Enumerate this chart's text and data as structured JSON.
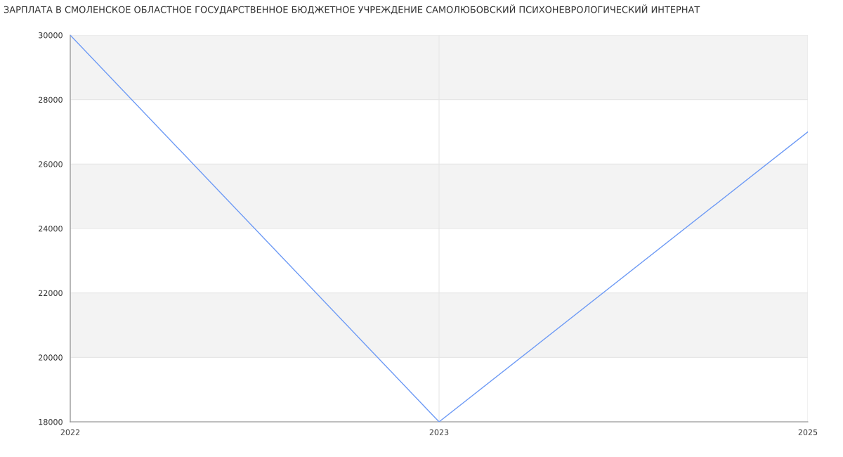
{
  "chart_data": {
    "type": "line",
    "title": "ЗАРПЛАТА В СМОЛЕНСКОЕ ОБЛАСТНОЕ ГОСУДАРСТВЕННОЕ БЮДЖЕТНОЕ УЧРЕЖДЕНИЕ САМОЛЮБОВСКИЙ ПСИХОНЕВРОЛОГИЧЕСКИЙ ИНТЕРНАТ",
    "categories": [
      "2022",
      "2023",
      "2025"
    ],
    "series": [
      {
        "color": "#6d9af5",
        "values": [
          30000,
          18000,
          27000
        ]
      }
    ],
    "ylim": [
      18000,
      30000
    ],
    "yticks": [
      18000,
      20000,
      22000,
      24000,
      26000,
      28000,
      30000
    ],
    "grid": true,
    "bands": [
      {
        "axis": "y",
        "from": 20000,
        "to": 22000,
        "color": "#f3f3f3"
      },
      {
        "axis": "y",
        "from": 24000,
        "to": 26000,
        "color": "#f3f3f3"
      },
      {
        "axis": "y",
        "from": 28000,
        "to": 30000,
        "color": "#f3f3f3"
      }
    ]
  }
}
